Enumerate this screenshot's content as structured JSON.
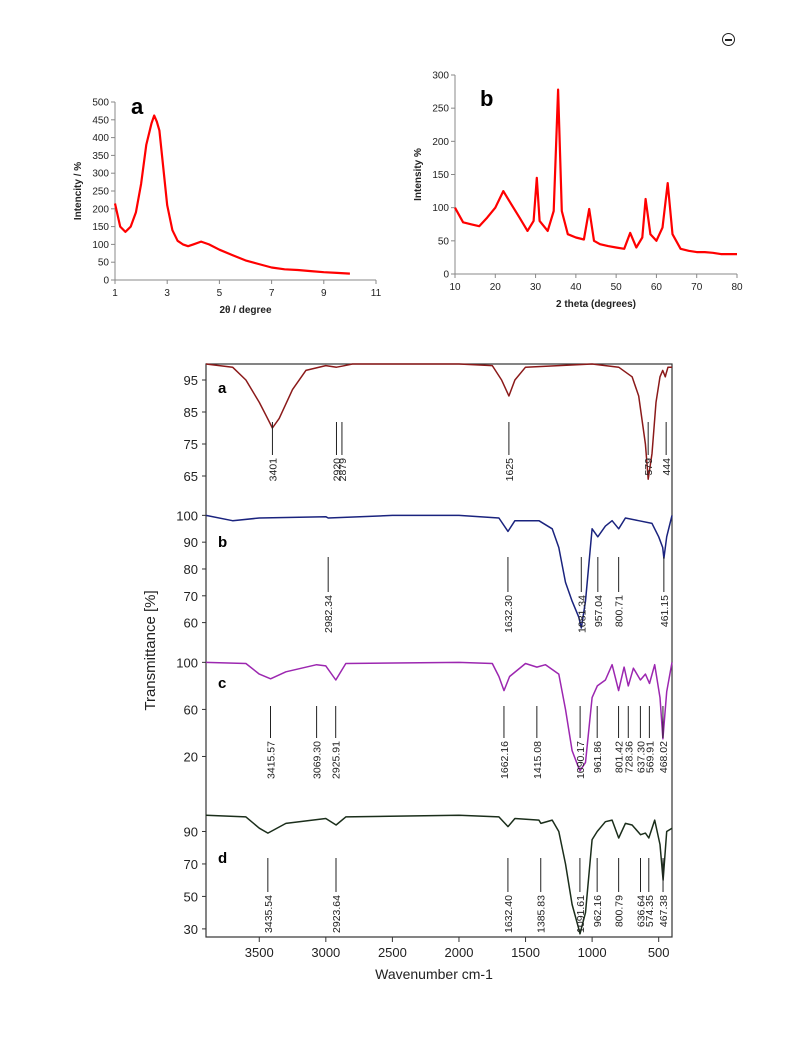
{
  "chart_data": [
    {
      "id": "xrd-a",
      "type": "line",
      "panel_label": "a",
      "xlabel": "2θ / degree",
      "ylabel": "Intencity  / %",
      "xlim": [
        1,
        11
      ],
      "ylim": [
        0,
        500
      ],
      "xticks": [
        "1",
        "3",
        "5",
        "7",
        "9",
        "11"
      ],
      "yticks": [
        "0",
        "50",
        "100",
        "150",
        "200",
        "250",
        "300",
        "350",
        "400",
        "450",
        "500"
      ],
      "color": "#ff0000",
      "series": [
        {
          "x": [
            1.0,
            1.2,
            1.4,
            1.6,
            1.8,
            2.0,
            2.2,
            2.4,
            2.5,
            2.6,
            2.7,
            2.8,
            3.0,
            3.2,
            3.4,
            3.6,
            3.8,
            4.0,
            4.3,
            4.6,
            5.0,
            5.5,
            6.0,
            6.5,
            7.0,
            7.5,
            8.0,
            8.5,
            9.0,
            9.5,
            10.0
          ],
          "y": [
            215,
            150,
            135,
            150,
            190,
            270,
            380,
            440,
            462,
            445,
            420,
            350,
            210,
            140,
            110,
            100,
            95,
            100,
            108,
            100,
            85,
            70,
            55,
            45,
            35,
            30,
            28,
            25,
            22,
            20,
            18
          ]
        }
      ]
    },
    {
      "id": "xrd-b",
      "type": "line",
      "panel_label": "b",
      "xlabel": "2 theta (degrees)",
      "ylabel": "Intensity %",
      "xlim": [
        10,
        80
      ],
      "ylim": [
        0,
        300
      ],
      "xticks": [
        "10",
        "20",
        "30",
        "40",
        "50",
        "60",
        "70",
        "80"
      ],
      "yticks": [
        "0",
        "50",
        "100",
        "150",
        "200",
        "250",
        "300"
      ],
      "color": "#ff0000",
      "series": [
        {
          "x": [
            10,
            12,
            14,
            16,
            18,
            20,
            22,
            24,
            26,
            28,
            29.5,
            30.3,
            31,
            33,
            34.5,
            35.6,
            36.5,
            38,
            40,
            42,
            43.3,
            44.5,
            46,
            48,
            50,
            52,
            53.5,
            55,
            56.5,
            57.3,
            58.5,
            60,
            61.5,
            62.8,
            64,
            66,
            68,
            70,
            72,
            74,
            76,
            78,
            80
          ],
          "y": [
            100,
            78,
            75,
            72,
            85,
            100,
            125,
            105,
            85,
            65,
            80,
            145,
            80,
            65,
            95,
            278,
            95,
            60,
            55,
            52,
            98,
            50,
            45,
            42,
            40,
            38,
            62,
            40,
            55,
            113,
            60,
            50,
            70,
            137,
            60,
            38,
            35,
            33,
            33,
            32,
            30,
            30,
            30
          ]
        }
      ]
    },
    {
      "id": "ftir",
      "type": "line",
      "xlabel": "Wavenumber cm-1",
      "ylabel": "Transmittance [%]",
      "xlim": [
        3900,
        400
      ],
      "xticks": [
        "3500",
        "3000",
        "2500",
        "2000",
        "1500",
        "1000",
        "500"
      ],
      "panels": [
        {
          "label": "a",
          "color": "#8b1a1a",
          "ylim": [
            60,
            100
          ],
          "yticks": [
            "95",
            "85",
            "75",
            "65"
          ],
          "peaks": [
            "3401",
            "2920",
            "2879",
            "1625",
            "579",
            "444"
          ],
          "x": [
            3900,
            3700,
            3600,
            3500,
            3450,
            3401,
            3350,
            3250,
            3150,
            3000,
            2920,
            2879,
            2800,
            2000,
            1750,
            1680,
            1625,
            1580,
            1500,
            1000,
            800,
            700,
            650,
            600,
            579,
            550,
            520,
            490,
            470,
            450,
            444,
            430,
            400
          ],
          "y": [
            100,
            99,
            95,
            88,
            84,
            80,
            83,
            92,
            98,
            99.5,
            99,
            99.3,
            100,
            100,
            99.5,
            95,
            90,
            95,
            99,
            100,
            99,
            96,
            90,
            75,
            64,
            72,
            88,
            96,
            98,
            96,
            97,
            99,
            99
          ]
        },
        {
          "label": "b",
          "color": "#1a237e",
          "ylim": [
            55,
            102
          ],
          "yticks": [
            "100",
            "90",
            "80",
            "70",
            "60"
          ],
          "peaks": [
            "2982.34",
            "1632.30",
            "1081.34",
            "957.04",
            "800.71",
            "461.15"
          ],
          "x": [
            3900,
            3700,
            3500,
            3000,
            2982,
            2500,
            2000,
            1700,
            1632,
            1580,
            1400,
            1300,
            1250,
            1200,
            1150,
            1100,
            1081,
            1050,
            1000,
            957,
            900,
            850,
            800,
            750,
            650,
            550,
            500,
            470,
            461,
            440,
            400
          ],
          "y": [
            100,
            98,
            99,
            99.5,
            99,
            100,
            100,
            99,
            94,
            98,
            98,
            95,
            88,
            75,
            68,
            62,
            58,
            68,
            95,
            92,
            96,
            98,
            95,
            99,
            98,
            97,
            92,
            88,
            84,
            92,
            100
          ]
        },
        {
          "label": "c",
          "color": "#9c27b0",
          "ylim": [
            0,
            102
          ],
          "yticks": [
            "100",
            "60",
            "20"
          ],
          "peaks": [
            "3415.57",
            "3069.30",
            "2925.91",
            "1662.16",
            "1415.08",
            "1090.17",
            "961.86",
            "801.42",
            "728.36",
            "637.30",
            "569.91",
            "468.02"
          ],
          "x": [
            3900,
            3600,
            3500,
            3415,
            3300,
            3069,
            3000,
            2925,
            2850,
            2000,
            1750,
            1700,
            1662,
            1620,
            1500,
            1415,
            1350,
            1250,
            1200,
            1150,
            1100,
            1090,
            1050,
            1000,
            961,
            900,
            850,
            801,
            760,
            728,
            690,
            637,
            600,
            569,
            530,
            490,
            468,
            440,
            400
          ],
          "y": [
            100,
            99,
            90,
            86,
            92,
            98,
            97,
            85,
            99,
            100,
            99,
            88,
            76,
            88,
            99,
            96,
            98,
            90,
            60,
            25,
            10,
            8,
            15,
            70,
            80,
            85,
            98,
            76,
            96,
            80,
            95,
            85,
            90,
            82,
            98,
            70,
            35,
            75,
            100
          ]
        },
        {
          "label": "d",
          "color": "#1b2e1b",
          "ylim": [
            25,
            102
          ],
          "yticks": [
            "90",
            "70",
            "50",
            "30"
          ],
          "peaks": [
            "3435.54",
            "2923.64",
            "1632.40",
            "1385.83",
            "1091.61",
            "962.16",
            "800.79",
            "636.64",
            "574.35",
            "467.38"
          ],
          "x": [
            3900,
            3600,
            3500,
            3435,
            3300,
            3000,
            2923,
            2850,
            2000,
            1700,
            1632,
            1580,
            1400,
            1385,
            1300,
            1250,
            1200,
            1150,
            1100,
            1091,
            1050,
            1000,
            962,
            900,
            850,
            800,
            750,
            700,
            636,
            600,
            574,
            530,
            490,
            467,
            440,
            400
          ],
          "y": [
            100,
            99,
            92,
            89,
            95,
            98,
            94,
            99,
            100,
            99,
            93,
            98,
            97,
            95,
            97,
            90,
            70,
            45,
            30,
            27,
            40,
            85,
            90,
            96,
            97,
            86,
            95,
            94,
            88,
            89,
            86,
            97,
            82,
            60,
            90,
            92
          ]
        }
      ]
    }
  ]
}
